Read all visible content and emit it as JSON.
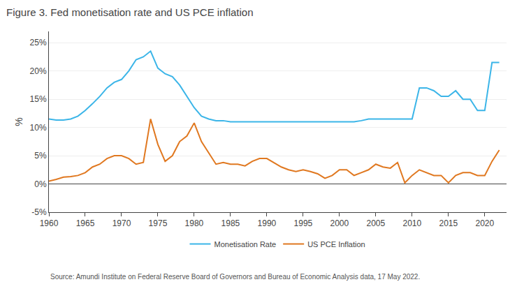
{
  "chart_data": {
    "type": "line",
    "title": "Figure 3. Fed monetisation rate and US PCE inflation",
    "annotations": [
      "Source: Amundi Institute on Federal Reserve Board of Governors and Bureau of Economic Analysis data, 17 May 2022."
    ],
    "ylabel": "%",
    "x": [
      1960,
      1961,
      1962,
      1963,
      1964,
      1965,
      1966,
      1967,
      1968,
      1969,
      1970,
      1971,
      1972,
      1973,
      1974,
      1975,
      1976,
      1977,
      1978,
      1979,
      1980,
      1981,
      1982,
      1983,
      1984,
      1985,
      1986,
      1987,
      1988,
      1989,
      1990,
      1991,
      1992,
      1993,
      1994,
      1995,
      1996,
      1997,
      1998,
      1999,
      2000,
      2001,
      2002,
      2003,
      2004,
      2005,
      2006,
      2007,
      2008,
      2009,
      2010,
      2011,
      2012,
      2013,
      2014,
      2015,
      2016,
      2017,
      2018,
      2019,
      2020,
      2021,
      2022
    ],
    "series": [
      {
        "name": "Monetisation Rate",
        "color": "#3bb5e8",
        "values": [
          11.5,
          11.3,
          11.3,
          11.5,
          12.0,
          13.0,
          14.2,
          15.5,
          17.0,
          18.0,
          18.5,
          20.0,
          22.0,
          22.5,
          23.5,
          20.5,
          19.5,
          19.0,
          17.5,
          15.5,
          13.5,
          12.0,
          11.5,
          11.2,
          11.2,
          11.0,
          11.0,
          11.0,
          11.0,
          11.0,
          11.0,
          11.0,
          11.0,
          11.0,
          11.0,
          11.0,
          11.0,
          11.0,
          11.0,
          11.0,
          11.0,
          11.0,
          11.0,
          11.2,
          11.5,
          11.5,
          11.5,
          11.5,
          11.5,
          11.5,
          11.5,
          17.0,
          17.0,
          16.5,
          15.5,
          15.5,
          16.5,
          15.0,
          15.0,
          13.0,
          13.0,
          21.5,
          21.5
        ]
      },
      {
        "name": "US PCE Inflation",
        "color": "#e07820",
        "values": [
          0.5,
          0.8,
          1.2,
          1.3,
          1.5,
          2.0,
          3.0,
          3.5,
          4.5,
          5.0,
          5.0,
          4.5,
          3.5,
          3.8,
          11.5,
          7.0,
          4.0,
          5.0,
          7.5,
          8.5,
          10.8,
          7.5,
          5.5,
          3.5,
          3.8,
          3.5,
          3.5,
          3.2,
          4.0,
          4.5,
          4.5,
          3.8,
          3.0,
          2.5,
          2.2,
          2.5,
          2.2,
          1.8,
          1.0,
          1.5,
          2.5,
          2.5,
          1.5,
          2.0,
          2.5,
          3.5,
          3.0,
          2.8,
          3.8,
          0.2,
          1.5,
          2.5,
          2.0,
          1.5,
          1.5,
          0.2,
          1.5,
          2.0,
          2.0,
          1.5,
          1.5,
          4.0,
          6.0
        ]
      }
    ],
    "xlim": [
      1960,
      2023
    ],
    "xticks": [
      1960,
      1965,
      1970,
      1975,
      1980,
      1985,
      1990,
      1995,
      2000,
      2005,
      2010,
      2015,
      2020
    ],
    "ylim": [
      -5,
      27
    ],
    "yticks": [
      {
        "value": -5,
        "label": "-5%"
      },
      {
        "value": 0,
        "label": "0%"
      },
      {
        "value": 5,
        "label": "5%"
      },
      {
        "value": 10,
        "label": "10%"
      },
      {
        "value": 15,
        "label": "15%"
      },
      {
        "value": 20,
        "label": "20%"
      },
      {
        "value": 25,
        "label": "25%"
      }
    ],
    "grid": true,
    "legend": "bottom"
  }
}
